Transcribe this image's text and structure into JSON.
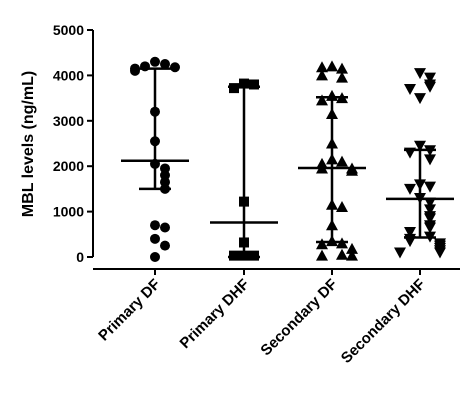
{
  "chart_data": {
    "type": "scatter",
    "title": "",
    "xlabel": "",
    "ylabel": "MBL levels (ng/mL)",
    "ylim": [
      0,
      5000
    ],
    "yticks": [
      0,
      1000,
      2000,
      3000,
      4000,
      5000
    ],
    "grid": false,
    "categories": [
      "Primary DF",
      "Primary DHF",
      "Secondary DF",
      "Secondary DHF"
    ],
    "groups": [
      {
        "category": "Primary DF",
        "marker": "circle",
        "median": 2120,
        "error_low": 1500,
        "error_high": 4150,
        "points": [
          4300,
          4250,
          4200,
          4180,
          4150,
          4100,
          3200,
          2550,
          2050,
          1950,
          1800,
          1650,
          1500,
          700,
          650,
          400,
          250,
          0
        ]
      },
      {
        "category": "Primary DHF",
        "marker": "square",
        "median": 760,
        "error_low": 0,
        "error_high": 3750,
        "points": [
          3820,
          3800,
          3720,
          1220,
          320,
          30,
          30,
          30
        ]
      },
      {
        "category": "Secondary DF",
        "marker": "triangle-up",
        "median": 1960,
        "error_low": 330,
        "error_high": 3520,
        "points": [
          4200,
          4150,
          4180,
          4000,
          3950,
          3550,
          3500,
          3450,
          3150,
          2500,
          2150,
          2100,
          2050,
          1950,
          1950,
          1900,
          1150,
          1100,
          700,
          350,
          300,
          280,
          180,
          50,
          30,
          30
        ]
      },
      {
        "category": "Secondary DHF",
        "marker": "triangle-down",
        "median": 1280,
        "error_low": 430,
        "error_high": 2360,
        "points": [
          4050,
          3950,
          3800,
          3750,
          3700,
          3500,
          2450,
          2350,
          2300,
          2150,
          1600,
          1550,
          1500,
          1300,
          1200,
          1050,
          900,
          850,
          700,
          650,
          550,
          450,
          400,
          350,
          300,
          250,
          200,
          150,
          100,
          100
        ]
      }
    ]
  }
}
